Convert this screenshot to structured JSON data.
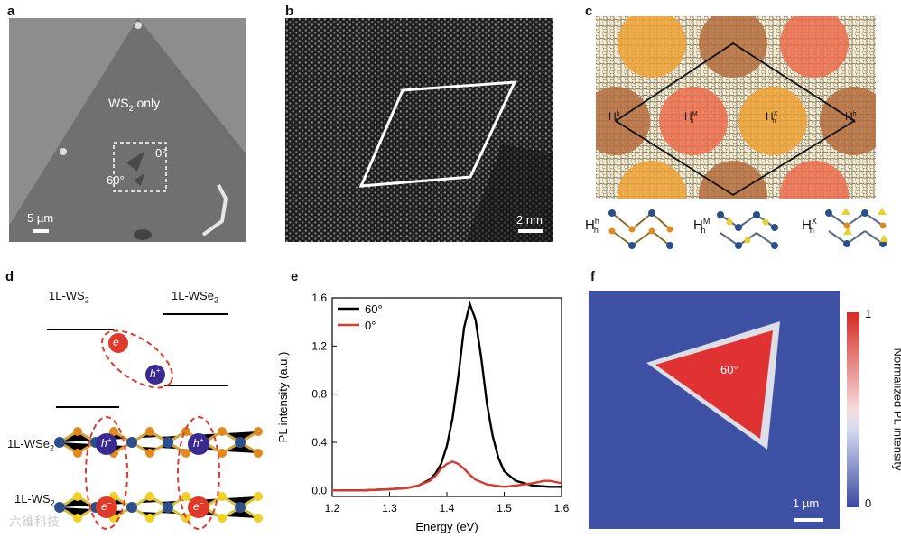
{
  "panels": {
    "a": {
      "label": "a",
      "region_label": "WS",
      "region_sub": "2",
      "region_suffix": " only",
      "angle_0": "0°",
      "angle_60": "60°",
      "scale_bar": "5 µm"
    },
    "b": {
      "label": "b",
      "scale_bar": "2 nm"
    },
    "c": {
      "label": "c",
      "stack_labels": [
        {
          "main": "H",
          "sup": "h",
          "sub": "h"
        },
        {
          "main": "H",
          "sup": "M",
          "sub": "h"
        },
        {
          "main": "H",
          "sup": "X",
          "sub": "h"
        },
        {
          "main": "H",
          "sup": "h",
          "sub": "h"
        }
      ],
      "legend": [
        {
          "main": "H",
          "sup": "h",
          "sub": "h"
        },
        {
          "main": "H",
          "sup": "M",
          "sub": "h"
        },
        {
          "main": "H",
          "sup": "X",
          "sub": "h"
        }
      ]
    },
    "d": {
      "label": "d",
      "ws2_top": "1L-WS",
      "ws2_top_sub": "2",
      "wse2_top": "1L-WSe",
      "wse2_top_sub": "2",
      "electron": "e",
      "electron_sup": "−",
      "hole": "h",
      "hole_sup": "+",
      "wse2_layer": "1L-WSe",
      "wse2_layer_sub": "2",
      "ws2_layer": "1L-WS",
      "ws2_layer_sub": "2",
      "watermark": "六维科技"
    },
    "f": {
      "label": "f",
      "angle": "60°",
      "scale_bar": "1 µm",
      "colorbar_max": "1",
      "colorbar_min": "0",
      "colorbar_title": "Normalized PL intensity"
    }
  },
  "chart_data": {
    "type": "line",
    "label": "e",
    "xlabel": "Energy (eV)",
    "ylabel": "PL intensity (a.u.)",
    "xlim": [
      1.2,
      1.6
    ],
    "ylim": [
      -0.05,
      1.6
    ],
    "xticks": [
      "1.2",
      "1.3",
      "1.4",
      "1.5",
      "1.6"
    ],
    "yticks": [
      "0.0",
      "0.4",
      "0.8",
      "1.2",
      "1.6"
    ],
    "legend_position": "top-left",
    "series": [
      {
        "name": "60°",
        "color": "#000000",
        "x": [
          1.2,
          1.25,
          1.3,
          1.33,
          1.35,
          1.37,
          1.38,
          1.39,
          1.4,
          1.41,
          1.42,
          1.43,
          1.44,
          1.45,
          1.46,
          1.47,
          1.48,
          1.49,
          1.5,
          1.52,
          1.55,
          1.58,
          1.6
        ],
        "y": [
          0.0,
          0.0,
          0.01,
          0.02,
          0.04,
          0.09,
          0.14,
          0.22,
          0.37,
          0.6,
          0.95,
          1.35,
          1.55,
          1.42,
          1.1,
          0.72,
          0.45,
          0.27,
          0.16,
          0.08,
          0.04,
          0.03,
          0.03
        ]
      },
      {
        "name": "0°",
        "color": "#d93a2b",
        "x": [
          1.2,
          1.25,
          1.3,
          1.33,
          1.35,
          1.37,
          1.38,
          1.39,
          1.4,
          1.41,
          1.42,
          1.43,
          1.44,
          1.45,
          1.47,
          1.5,
          1.52,
          1.55,
          1.57,
          1.58,
          1.59,
          1.6
        ],
        "y": [
          0.0,
          0.0,
          0.01,
          0.02,
          0.04,
          0.08,
          0.12,
          0.18,
          0.22,
          0.24,
          0.22,
          0.18,
          0.13,
          0.09,
          0.05,
          0.03,
          0.04,
          0.06,
          0.08,
          0.08,
          0.07,
          0.06
        ]
      }
    ]
  }
}
